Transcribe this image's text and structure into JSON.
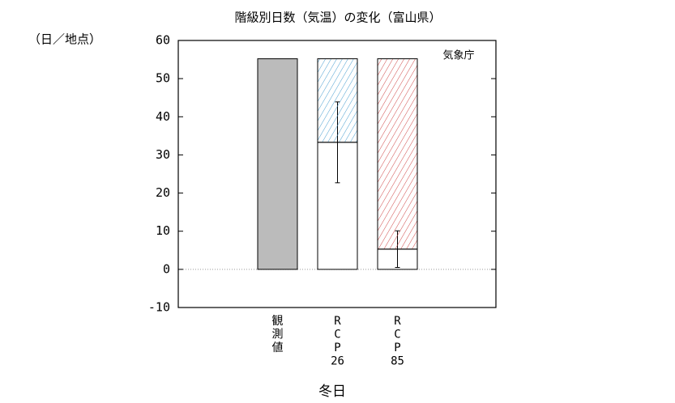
{
  "chart_data": {
    "type": "bar",
    "title": "階級別日数（気温）の変化（富山県）",
    "y_unit": "（日／地点）",
    "source": "気象庁",
    "xlabel": "冬日",
    "categories": [
      [
        "観",
        "測",
        "値"
      ],
      [
        "R",
        "C",
        "P",
        "26"
      ],
      [
        "R",
        "C",
        "P",
        "85"
      ]
    ],
    "series": [
      {
        "color": "#bbbbbb",
        "values": [
          55.2,
          null,
          null
        ]
      },
      {
        "color": "#ffffff",
        "values": [
          null,
          33.3,
          5.3
        ],
        "error_low": [
          null,
          22.7,
          0.5
        ],
        "error_high": [
          null,
          43.9,
          10.1
        ]
      },
      {
        "colors": [
          null,
          "#4a9fd0",
          "#d04a4a"
        ],
        "hatch": true,
        "values": [
          null,
          21.9,
          49.9
        ]
      }
    ],
    "ylim": [
      -10,
      60
    ],
    "yticks": [
      -10,
      0,
      10,
      20,
      30,
      40,
      50,
      60
    ]
  }
}
